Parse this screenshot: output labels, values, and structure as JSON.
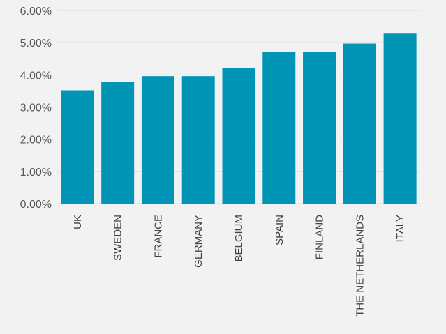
{
  "chart_data": {
    "type": "bar",
    "title": "",
    "xlabel": "",
    "ylabel": "",
    "categories": [
      "UK",
      "SWEDEN",
      "FRANCE",
      "GERMANY",
      "BELGIUM",
      "SPAIN",
      "FINLAND",
      "THE NETHERLANDS",
      "ITALY"
    ],
    "values": [
      3.52,
      3.78,
      3.96,
      3.96,
      4.22,
      4.7,
      4.7,
      4.97,
      5.28
    ],
    "ylim": [
      0,
      6
    ],
    "yticks": [
      0,
      1,
      2,
      3,
      4,
      5,
      6
    ],
    "ytick_labels": [
      "0.00%",
      "1.00%",
      "2.00%",
      "3.00%",
      "4.00%",
      "5.00%",
      "6.00%"
    ],
    "grid": true,
    "legend": "none",
    "bar_color": "#0095b6",
    "background": "#f2f2f2"
  }
}
